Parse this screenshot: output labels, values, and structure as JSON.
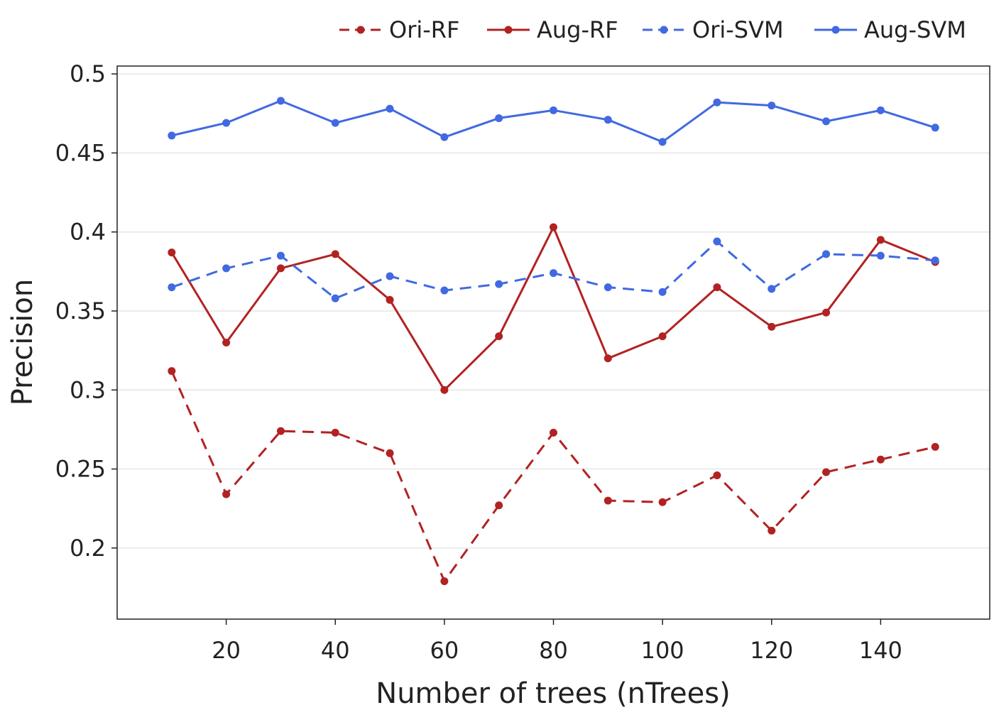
{
  "chart_data": {
    "type": "line",
    "title": "",
    "xlabel": "Number of trees (nTrees)",
    "ylabel": "Precision",
    "x": [
      10,
      20,
      30,
      40,
      50,
      60,
      70,
      80,
      90,
      100,
      110,
      120,
      130,
      140,
      150
    ],
    "xlim": [
      0,
      160
    ],
    "ylim": [
      0.155,
      0.505
    ],
    "xticks": [
      20,
      40,
      60,
      80,
      100,
      120,
      140
    ],
    "xtick_labels": [
      "20",
      "40",
      "60",
      "80",
      "100",
      "120",
      "140"
    ],
    "yticks": [
      0.2,
      0.25,
      0.3,
      0.35,
      0.4,
      0.45,
      0.5
    ],
    "ytick_labels": [
      "0.2",
      "0.25",
      "0.3",
      "0.35",
      "0.4",
      "0.45",
      "0.5"
    ],
    "grid": true,
    "legend_position": "top-right",
    "series": [
      {
        "name": "Ori-RF",
        "color": "#b22222",
        "dash": true,
        "values": [
          0.312,
          0.234,
          0.274,
          0.273,
          0.26,
          0.179,
          0.227,
          0.273,
          0.23,
          0.229,
          0.246,
          0.211,
          0.248,
          0.256,
          0.264
        ]
      },
      {
        "name": "Aug-RF",
        "color": "#b22222",
        "dash": false,
        "values": [
          0.387,
          0.33,
          0.377,
          0.386,
          0.357,
          0.3,
          0.334,
          0.403,
          0.32,
          0.334,
          0.365,
          0.34,
          0.349,
          0.395,
          0.381
        ]
      },
      {
        "name": "Ori-SVM",
        "color": "#4169e1",
        "dash": true,
        "values": [
          0.365,
          0.377,
          0.385,
          0.358,
          0.372,
          0.363,
          0.367,
          0.374,
          0.365,
          0.362,
          0.394,
          0.364,
          0.386,
          0.385,
          0.382
        ]
      },
      {
        "name": "Aug-SVM",
        "color": "#4169e1",
        "dash": false,
        "values": [
          0.461,
          0.469,
          0.483,
          0.469,
          0.478,
          0.46,
          0.472,
          0.477,
          0.471,
          0.457,
          0.482,
          0.48,
          0.47,
          0.477,
          0.466
        ]
      }
    ]
  }
}
